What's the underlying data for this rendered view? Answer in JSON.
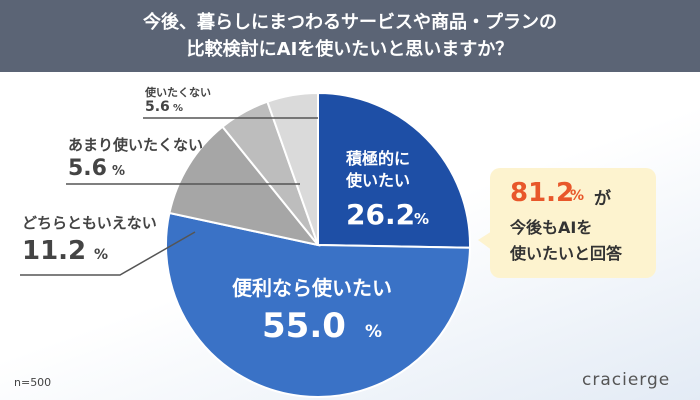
{
  "title": "今後、暮らしにまつわるサービスや商品・プランの\n比較検討にAIを使いたいと思いますか？",
  "chart_data": {
    "type": "pie",
    "categories": [
      "積極的に\n使いたい",
      "便利なら使いたい",
      "どちらともいえない",
      "あまり使いたくない",
      "使いたくない"
    ],
    "values": [
      26.2,
      55.0,
      11.2,
      5.6,
      5.6
    ],
    "value_labels": [
      "26.2",
      "55.0",
      "11.2",
      "5.6",
      "5.6"
    ],
    "unit": "%",
    "colors": [
      "#1e4fa6",
      "#3a72c6",
      "#a6a6a6",
      "#bdbdbd",
      "#dadada"
    ]
  },
  "callout": {
    "value": "81.2",
    "unit": "%",
    "suffix": "が",
    "lines": [
      "今後もAIを",
      "使いたいと回答"
    ]
  },
  "note": "n=500",
  "brand": "cracierge"
}
